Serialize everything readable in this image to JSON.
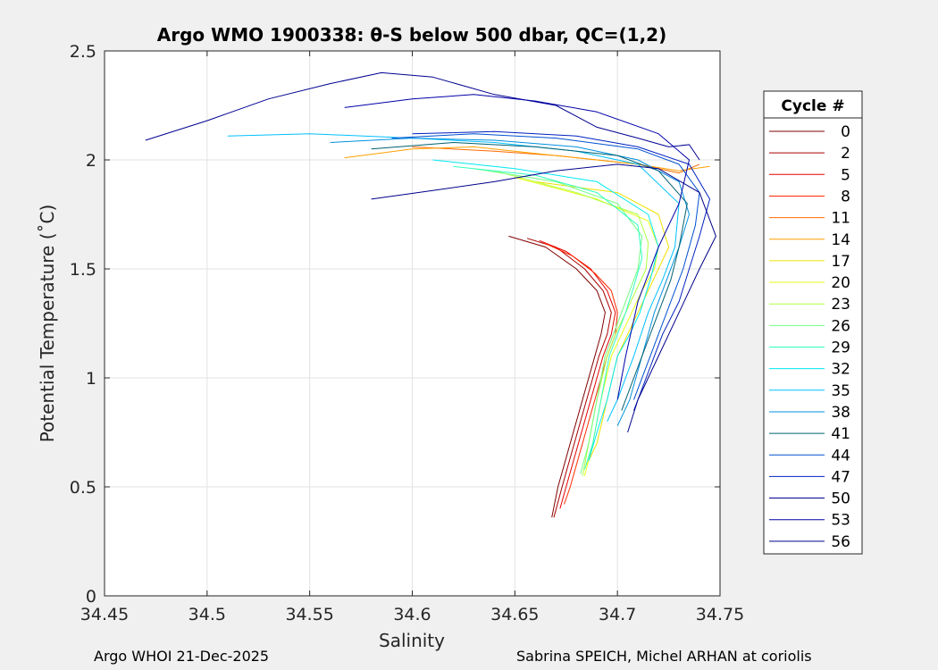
{
  "chart_data": {
    "type": "line",
    "title": "Argo WMO 1900338: θ-S below 500 dbar,  QC=(1,2)",
    "xlabel": "Salinity",
    "ylabel": "Potential Temperature (˚C)",
    "xlim": [
      34.45,
      34.75
    ],
    "ylim": [
      0,
      2.5
    ],
    "xticks": [
      "34.45",
      "34.5",
      "34.55",
      "34.6",
      "34.65",
      "34.7",
      "34.75"
    ],
    "xtick_values": [
      34.45,
      34.5,
      34.55,
      34.6,
      34.65,
      34.7,
      34.75
    ],
    "yticks": [
      "0",
      "0.5",
      "1",
      "1.5",
      "2",
      "2.5"
    ],
    "ytick_values": [
      0,
      0.5,
      1,
      1.5,
      2,
      2.5
    ],
    "grid": true,
    "legend": {
      "title": "Cycle #",
      "placement": "right-outside",
      "entries": [
        {
          "label": "0",
          "color": "#800000"
        },
        {
          "label": "2",
          "color": "#a80000"
        },
        {
          "label": "5",
          "color": "#e60000"
        },
        {
          "label": "8",
          "color": "#ff2a00"
        },
        {
          "label": "11",
          "color": "#ff6a00"
        },
        {
          "label": "14",
          "color": "#ffa000"
        },
        {
          "label": "17",
          "color": "#f0e000"
        },
        {
          "label": "20",
          "color": "#e6ff10"
        },
        {
          "label": "23",
          "color": "#b0ff40"
        },
        {
          "label": "26",
          "color": "#70ff80"
        },
        {
          "label": "29",
          "color": "#30ffc0"
        },
        {
          "label": "32",
          "color": "#00e8f0"
        },
        {
          "label": "35",
          "color": "#00c0ff"
        },
        {
          "label": "38",
          "color": "#0090e0"
        },
        {
          "label": "41",
          "color": "#006070"
        },
        {
          "label": "44",
          "color": "#0050d0"
        },
        {
          "label": "47",
          "color": "#0020c0"
        },
        {
          "label": "50",
          "color": "#000090"
        },
        {
          "label": "53",
          "color": "#0000a8"
        },
        {
          "label": "56",
          "color": "#00008b"
        }
      ]
    },
    "series": [
      {
        "name": "0",
        "color": "#800000",
        "x": [
          34.647,
          34.665,
          34.68,
          34.69,
          34.694,
          34.692,
          34.689,
          34.686,
          34.683,
          34.68,
          34.677,
          34.674,
          34.671,
          34.668
        ],
        "y": [
          1.65,
          1.6,
          1.5,
          1.4,
          1.3,
          1.2,
          1.1,
          1.0,
          0.9,
          0.8,
          0.7,
          0.6,
          0.5,
          0.36
        ]
      },
      {
        "name": "2",
        "color": "#a80000",
        "x": [
          34.656,
          34.67,
          34.684,
          34.693,
          34.697,
          34.695,
          34.691,
          34.688,
          34.685,
          34.682,
          34.679,
          34.676,
          34.673,
          34.669
        ],
        "y": [
          1.64,
          1.6,
          1.5,
          1.4,
          1.3,
          1.2,
          1.1,
          1.0,
          0.9,
          0.8,
          0.7,
          0.6,
          0.5,
          0.36
        ]
      },
      {
        "name": "5",
        "color": "#e60000",
        "x": [
          34.662,
          34.675,
          34.687,
          34.695,
          34.699,
          34.697,
          34.693,
          34.69,
          34.687,
          34.684,
          34.681,
          34.678,
          34.675,
          34.672
        ],
        "y": [
          1.63,
          1.58,
          1.5,
          1.4,
          1.3,
          1.2,
          1.1,
          1.0,
          0.9,
          0.8,
          0.7,
          0.6,
          0.5,
          0.4
        ]
      },
      {
        "name": "8",
        "color": "#ff2a00",
        "x": [
          34.664,
          34.678,
          34.689,
          34.697,
          34.7,
          34.699,
          34.695,
          34.692,
          34.689,
          34.686,
          34.683,
          34.68,
          34.677,
          34.674
        ],
        "y": [
          1.62,
          1.56,
          1.48,
          1.4,
          1.3,
          1.2,
          1.1,
          1.0,
          0.9,
          0.8,
          0.7,
          0.6,
          0.5,
          0.42
        ]
      },
      {
        "name": "11",
        "color": "#ff6a00",
        "x": [
          34.6,
          34.64,
          34.67,
          34.69,
          34.71,
          34.72,
          34.73,
          34.74
        ],
        "y": [
          2.06,
          2.04,
          2.02,
          2.0,
          1.98,
          1.96,
          1.94,
          1.98
        ]
      },
      {
        "name": "14",
        "color": "#ffa000",
        "x": [
          34.567,
          34.6,
          34.63,
          34.66,
          34.69,
          34.71,
          34.73,
          34.745
        ],
        "y": [
          2.01,
          2.05,
          2.06,
          2.03,
          2.0,
          1.98,
          1.95,
          1.97
        ]
      },
      {
        "name": "17",
        "color": "#f0e000",
        "x": [
          34.66,
          34.7,
          34.72,
          34.725,
          34.72,
          34.715,
          34.71,
          34.705,
          34.7,
          34.695,
          34.69,
          34.685
        ],
        "y": [
          1.9,
          1.85,
          1.75,
          1.6,
          1.5,
          1.4,
          1.3,
          1.2,
          1.1,
          0.9,
          0.7,
          0.6
        ]
      },
      {
        "name": "20",
        "color": "#e6ff10",
        "x": [
          34.65,
          34.69,
          34.715,
          34.72,
          34.718,
          34.712,
          34.707,
          34.702,
          34.697,
          34.692,
          34.688,
          34.684
        ],
        "y": [
          1.92,
          1.82,
          1.72,
          1.6,
          1.5,
          1.4,
          1.3,
          1.2,
          1.1,
          0.9,
          0.7,
          0.55
        ]
      },
      {
        "name": "23",
        "color": "#b0ff40",
        "x": [
          34.64,
          34.68,
          34.71,
          34.715,
          34.714,
          34.709,
          34.704,
          34.699,
          34.695,
          34.69,
          34.686,
          34.683
        ],
        "y": [
          1.95,
          1.85,
          1.75,
          1.62,
          1.5,
          1.4,
          1.3,
          1.2,
          1.1,
          0.9,
          0.7,
          0.55
        ]
      },
      {
        "name": "26",
        "color": "#70ff80",
        "x": [
          34.63,
          34.67,
          34.7,
          34.712,
          34.71,
          34.706,
          34.702,
          34.698,
          34.694,
          34.69,
          34.686,
          34.682
        ],
        "y": [
          1.96,
          1.9,
          1.8,
          1.65,
          1.5,
          1.4,
          1.3,
          1.2,
          1.1,
          0.9,
          0.7,
          0.56
        ]
      },
      {
        "name": "29",
        "color": "#30ffc0",
        "x": [
          34.62,
          34.66,
          34.69,
          34.71,
          34.712,
          34.708,
          34.704,
          34.7,
          34.696,
          34.692,
          34.688,
          34.684
        ],
        "y": [
          1.97,
          1.93,
          1.85,
          1.7,
          1.55,
          1.42,
          1.3,
          1.2,
          1.1,
          0.9,
          0.7,
          0.58
        ]
      },
      {
        "name": "32",
        "color": "#00e8f0",
        "x": [
          34.61,
          34.65,
          34.69,
          34.715,
          34.72,
          34.716,
          34.711,
          34.706,
          34.7,
          34.695,
          34.69,
          34.686
        ],
        "y": [
          2.0,
          1.96,
          1.9,
          1.75,
          1.6,
          1.45,
          1.3,
          1.2,
          1.1,
          0.9,
          0.75,
          0.62
        ]
      },
      {
        "name": "35",
        "color": "#00c0ff",
        "x": [
          34.51,
          34.55,
          34.6,
          34.64,
          34.68,
          34.71,
          34.73,
          34.728,
          34.722,
          34.715,
          34.708,
          34.7,
          34.695
        ],
        "y": [
          2.11,
          2.12,
          2.1,
          2.08,
          2.04,
          1.98,
          1.8,
          1.6,
          1.45,
          1.3,
          1.1,
          0.9,
          0.8
        ]
      },
      {
        "name": "38",
        "color": "#0090e0",
        "x": [
          34.56,
          34.6,
          34.64,
          34.68,
          34.71,
          34.73,
          34.735,
          34.73,
          34.724,
          34.718,
          34.712,
          34.706,
          34.7
        ],
        "y": [
          2.08,
          2.1,
          2.09,
          2.06,
          2.0,
          1.9,
          1.75,
          1.6,
          1.45,
          1.3,
          1.1,
          0.9,
          0.78
        ]
      },
      {
        "name": "41",
        "color": "#006070",
        "x": [
          34.58,
          34.62,
          34.66,
          34.7,
          34.72,
          34.734,
          34.73,
          34.726,
          34.72,
          34.714,
          34.708,
          34.702
        ],
        "y": [
          2.05,
          2.08,
          2.06,
          2.02,
          1.95,
          1.8,
          1.6,
          1.45,
          1.3,
          1.15,
          1.0,
          0.85
        ]
      },
      {
        "name": "44",
        "color": "#0050d0",
        "x": [
          34.59,
          34.63,
          34.67,
          34.71,
          34.73,
          34.74,
          34.738,
          34.732,
          34.726,
          34.72,
          34.714,
          34.708
        ],
        "y": [
          2.1,
          2.12,
          2.1,
          2.05,
          1.98,
          1.85,
          1.7,
          1.5,
          1.35,
          1.2,
          1.05,
          0.9
        ]
      },
      {
        "name": "47",
        "color": "#0020c0",
        "x": [
          34.6,
          34.64,
          34.68,
          34.71,
          34.735,
          34.745,
          34.74,
          34.735,
          34.73,
          34.722,
          34.714,
          34.708
        ],
        "y": [
          2.12,
          2.13,
          2.11,
          2.06,
          1.98,
          1.82,
          1.65,
          1.5,
          1.35,
          1.2,
          1.0,
          0.85
        ]
      },
      {
        "name": "50",
        "color": "#000090",
        "x": [
          34.47,
          34.5,
          34.53,
          34.56,
          34.585,
          34.61,
          34.64,
          34.67,
          34.69,
          34.71,
          34.725,
          34.735,
          34.74
        ],
        "y": [
          2.09,
          2.18,
          2.28,
          2.35,
          2.4,
          2.38,
          2.3,
          2.25,
          2.15,
          2.1,
          2.06,
          2.07,
          2.0
        ]
      },
      {
        "name": "53",
        "color": "#0000a8",
        "x": [
          34.567,
          34.6,
          34.63,
          34.66,
          34.69,
          34.72,
          34.735,
          34.73,
          34.72,
          34.71,
          34.704,
          34.7
        ],
        "y": [
          2.24,
          2.28,
          2.3,
          2.27,
          2.22,
          2.12,
          2.0,
          1.8,
          1.6,
          1.35,
          1.1,
          0.9
        ]
      },
      {
        "name": "56",
        "color": "#00008b",
        "x": [
          34.58,
          34.61,
          34.64,
          34.67,
          34.7,
          34.72,
          34.74,
          34.748,
          34.74,
          34.73,
          34.72,
          34.71,
          34.705
        ],
        "y": [
          1.82,
          1.86,
          1.9,
          1.95,
          1.98,
          1.96,
          1.85,
          1.65,
          1.5,
          1.3,
          1.1,
          0.9,
          0.75
        ]
      }
    ]
  },
  "footer": {
    "left": "Argo WHOI 21-Dec-2025",
    "right": "Sabrina SPEICH, Michel ARHAN at coriolis"
  }
}
